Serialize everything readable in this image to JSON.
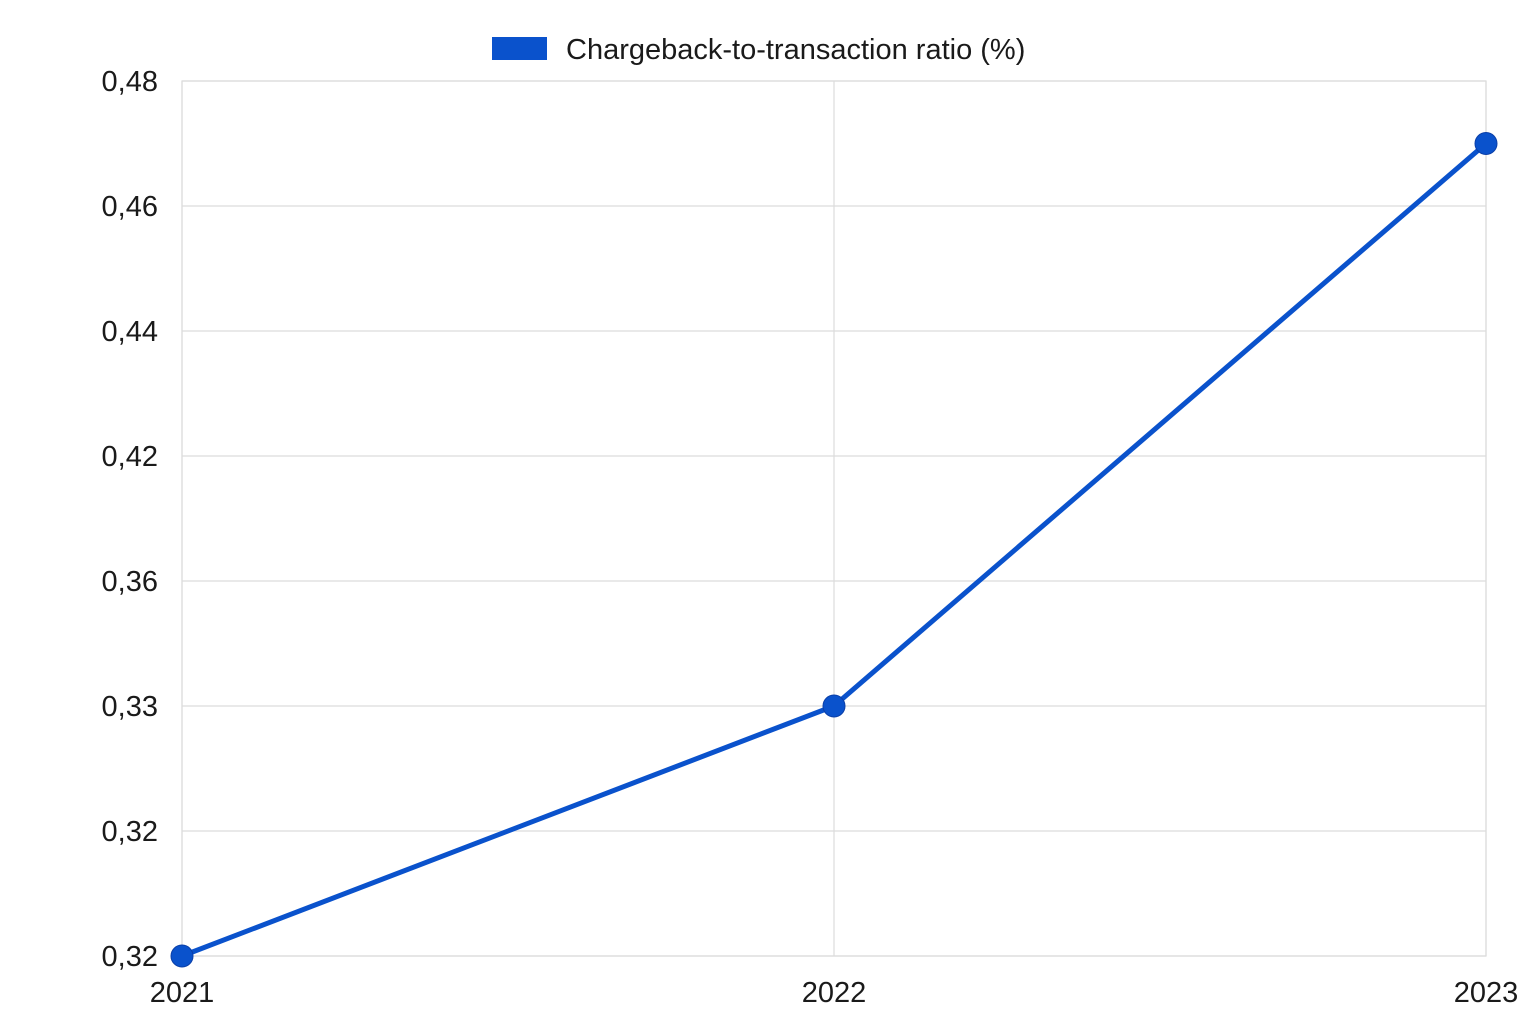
{
  "chart_data": {
    "type": "line",
    "legend_position": "top-center",
    "grid": true,
    "categories": [
      "2021",
      "2022",
      "2023"
    ],
    "y_tick_labels": [
      "0,48",
      "0,46",
      "0,44",
      "0,42",
      "0,36",
      "0,33",
      "0,32",
      "0,32"
    ],
    "series": [
      {
        "name": "Chargeback-to-transaction ratio (%)",
        "color": "#0a52cc",
        "values": [
          0.31,
          0.33,
          0.47
        ]
      }
    ]
  }
}
